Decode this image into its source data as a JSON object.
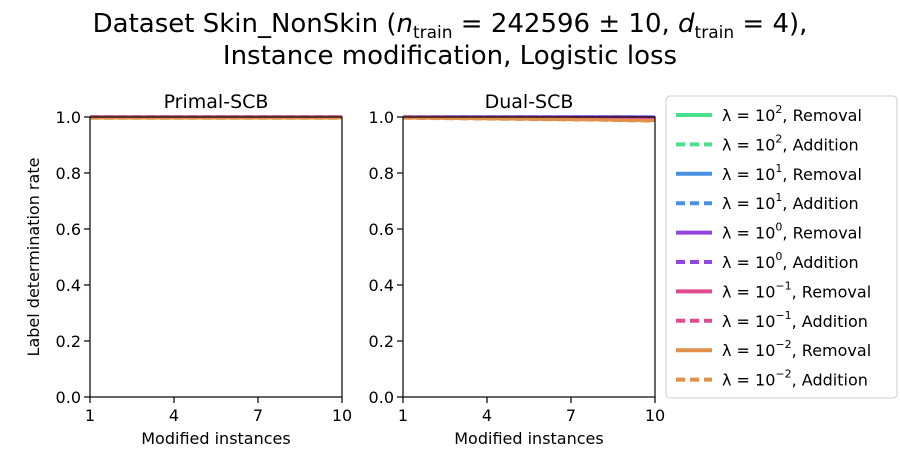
{
  "figure": {
    "title_line1_prefix": "Dataset Skin_NonSkin (",
    "title_line1_n": "n",
    "title_line1_n_sub": "train",
    "title_line1_mid": " = 242596 ± 10, ",
    "title_line1_d": "d",
    "title_line1_d_sub": "train",
    "title_line1_suffix": " = 4),",
    "title_line2": "Instance modification, Logistic loss"
  },
  "chart_data": [
    {
      "type": "line",
      "title": "Primal-SCB",
      "xlabel": "Modified instances",
      "ylabel": "Label determination rate",
      "xlim": [
        1,
        10
      ],
      "ylim": [
        0,
        1.0
      ],
      "xticks": [
        1,
        4,
        7,
        10
      ],
      "yticks": [
        0.0,
        0.2,
        0.4,
        0.6,
        0.8,
        1.0
      ],
      "ytick_labels": [
        "0.0",
        "0.2",
        "0.4",
        "0.6",
        "0.8",
        "1.0"
      ],
      "x": [
        1,
        2,
        3,
        4,
        5,
        6,
        7,
        8,
        9,
        10
      ],
      "series": [
        {
          "legend_index": 0,
          "values": [
            1,
            1,
            1,
            1,
            1,
            1,
            1,
            1,
            1,
            1
          ]
        },
        {
          "legend_index": 1,
          "values": [
            1,
            1,
            1,
            1,
            1,
            1,
            1,
            1,
            1,
            1
          ]
        },
        {
          "legend_index": 2,
          "values": [
            1,
            1,
            1,
            1,
            1,
            1,
            1,
            1,
            1,
            1
          ]
        },
        {
          "legend_index": 3,
          "values": [
            1,
            1,
            1,
            1,
            1,
            1,
            1,
            1,
            1,
            1
          ]
        },
        {
          "legend_index": 4,
          "values": [
            1,
            1,
            1,
            1,
            1,
            1,
            1,
            1,
            1,
            1
          ]
        },
        {
          "legend_index": 5,
          "values": [
            1,
            1,
            1,
            1,
            1,
            1,
            1,
            1,
            1,
            1
          ]
        },
        {
          "legend_index": 6,
          "values": [
            1,
            1,
            1,
            1,
            1,
            1,
            1,
            1,
            1,
            1
          ]
        },
        {
          "legend_index": 7,
          "values": [
            1,
            1,
            1,
            1,
            1,
            1,
            1,
            1,
            1,
            1
          ]
        },
        {
          "legend_index": 8,
          "values": [
            0.997,
            0.997,
            0.997,
            0.997,
            0.997,
            0.997,
            0.997,
            0.997,
            0.997,
            0.997
          ]
        },
        {
          "legend_index": 9,
          "values": [
            0.996,
            0.996,
            0.996,
            0.996,
            0.996,
            0.996,
            0.996,
            0.996,
            0.996,
            0.996
          ]
        }
      ]
    },
    {
      "type": "line",
      "title": "Dual-SCB",
      "xlabel": "Modified instances",
      "ylabel": "",
      "xlim": [
        1,
        10
      ],
      "ylim": [
        0,
        1.0
      ],
      "xticks": [
        1,
        4,
        7,
        10
      ],
      "yticks": [
        0.0,
        0.2,
        0.4,
        0.6,
        0.8,
        1.0
      ],
      "ytick_labels": [
        "0.0",
        "0.2",
        "0.4",
        "0.6",
        "0.8",
        "1.0"
      ],
      "x": [
        1,
        2,
        3,
        4,
        5,
        6,
        7,
        8,
        9,
        10
      ],
      "series": [
        {
          "legend_index": 0,
          "values": [
            1,
            1,
            1,
            1,
            1,
            1,
            1,
            1,
            1,
            1
          ]
        },
        {
          "legend_index": 1,
          "values": [
            1,
            1,
            1,
            1,
            1,
            1,
            1,
            1,
            1,
            1
          ]
        },
        {
          "legend_index": 2,
          "values": [
            1,
            1,
            1,
            1,
            1,
            1,
            1,
            1,
            1,
            1
          ]
        },
        {
          "legend_index": 3,
          "values": [
            1,
            1,
            1,
            1,
            1,
            1,
            1,
            1,
            1,
            1
          ]
        },
        {
          "legend_index": 4,
          "values": [
            1,
            1,
            1,
            1,
            1,
            1,
            1,
            1,
            1,
            0.999
          ]
        },
        {
          "legend_index": 5,
          "values": [
            1,
            1,
            1,
            1,
            1,
            1,
            1,
            1,
            1,
            0.999
          ]
        },
        {
          "legend_index": 6,
          "values": [
            0.999,
            0.999,
            0.998,
            0.998,
            0.998,
            0.997,
            0.997,
            0.996,
            0.996,
            0.995
          ]
        },
        {
          "legend_index": 7,
          "values": [
            0.999,
            0.999,
            0.998,
            0.998,
            0.998,
            0.997,
            0.997,
            0.996,
            0.996,
            0.995
          ]
        },
        {
          "legend_index": 8,
          "values": [
            0.997,
            0.996,
            0.995,
            0.994,
            0.993,
            0.992,
            0.991,
            0.99,
            0.988,
            0.987
          ]
        },
        {
          "legend_index": 9,
          "values": [
            0.996,
            0.995,
            0.994,
            0.993,
            0.992,
            0.991,
            0.99,
            0.989,
            0.987,
            0.986
          ]
        }
      ]
    }
  ],
  "legend": {
    "placement": "right",
    "entries": [
      {
        "lambda_exp": "2",
        "label": ", Removal",
        "color": "#4be08f",
        "style": "solid"
      },
      {
        "lambda_exp": "2",
        "label": ", Addition",
        "color": "#4be08f",
        "style": "dashed"
      },
      {
        "lambda_exp": "1",
        "label": ", Removal",
        "color": "#4a90e0",
        "style": "solid"
      },
      {
        "lambda_exp": "1",
        "label": ", Addition",
        "color": "#4a90e0",
        "style": "dashed"
      },
      {
        "lambda_exp": "0",
        "label": ", Removal",
        "color": "#9146df",
        "style": "solid"
      },
      {
        "lambda_exp": "0",
        "label": ", Addition",
        "color": "#9146df",
        "style": "dashed"
      },
      {
        "lambda_exp": "−1",
        "label": ", Removal",
        "color": "#e04a8f",
        "style": "solid"
      },
      {
        "lambda_exp": "−1",
        "label": ", Addition",
        "color": "#e04a8f",
        "style": "dashed"
      },
      {
        "lambda_exp": "−2",
        "label": ", Removal",
        "color": "#e0904a",
        "style": "solid"
      },
      {
        "lambda_exp": "−2",
        "label": ", Addition",
        "color": "#e0904a",
        "style": "dashed"
      }
    ],
    "lambda_prefix": "λ = 10"
  }
}
